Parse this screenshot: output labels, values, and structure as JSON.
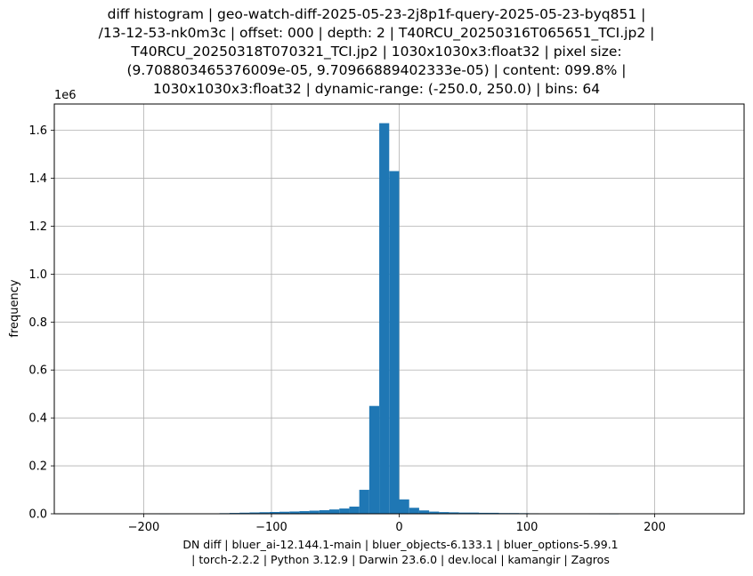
{
  "chart_data": {
    "type": "bar",
    "title_lines": [
      "diff histogram | geo-watch-diff-2025-05-23-2j8p1f-query-2025-05-23-byq851 |",
      "/13-12-53-nk0m3c | offset: 000 | depth: 2 | T40RCU_20250316T065651_TCI.jp2 |",
      "T40RCU_20250318T070321_TCI.jp2 | 1030x1030x3:float32 | pixel size:",
      "(9.708803465376009e-05, 9.70966889402333e-05) | content: 099.8% |",
      "1030x1030x3:float32 | dynamic-range: (-250.0, 250.0) | bins: 64"
    ],
    "xlabel_lines": [
      "DN diff | bluer_ai-12.144.1-main | bluer_objects-6.133.1 | bluer_options-5.99.1",
      "| torch-2.2.2 | Python 3.12.9 | Darwin 23.6.0 | dev.local | kamangir | Zagros"
    ],
    "ylabel": "frequency",
    "y_multiplier": "1e6",
    "xlim": [
      -270,
      270
    ],
    "ylim": [
      0,
      1.71
    ],
    "x_ticks": [
      -200,
      -100,
      0,
      100,
      200
    ],
    "x_tick_labels": [
      "−200",
      "−100",
      "0",
      "100",
      "200"
    ],
    "y_ticks": [
      0.0,
      0.2,
      0.4,
      0.6,
      0.8,
      1.0,
      1.2,
      1.4,
      1.6
    ],
    "y_tick_labels": [
      "0.0",
      "0.2",
      "0.4",
      "0.6",
      "0.8",
      "1.0",
      "1.2",
      "1.4",
      "1.6"
    ],
    "grid": true,
    "bar_color": "#1f77b4",
    "bins": {
      "range": [
        -250,
        250
      ],
      "count": 64,
      "values": [
        0,
        0,
        0,
        0,
        0,
        0,
        0,
        0,
        0.0002,
        0.0003,
        0.0005,
        0.0008,
        0.0012,
        0.0018,
        0.0025,
        0.0035,
        0.0045,
        0.0055,
        0.0065,
        0.0075,
        0.0085,
        0.0095,
        0.011,
        0.013,
        0.015,
        0.018,
        0.022,
        0.03,
        0.1,
        0.45,
        1.63,
        1.43,
        0.06,
        0.025,
        0.014,
        0.009,
        0.007,
        0.006,
        0.005,
        0.005,
        0.004,
        0.004,
        0.003,
        0.003,
        0.0025,
        0.002,
        0.0015,
        0.001,
        0.0008,
        0.0006,
        0.0004,
        0.0003,
        0.0002,
        0.0001,
        0,
        0,
        0,
        0,
        0,
        0,
        0,
        0,
        0,
        0
      ]
    }
  }
}
